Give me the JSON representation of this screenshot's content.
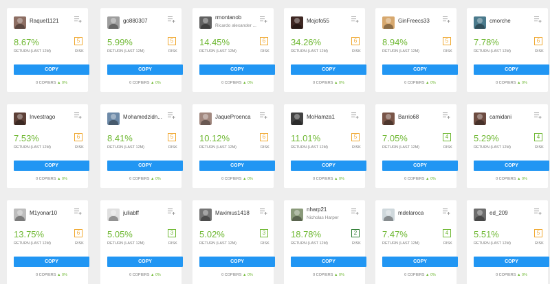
{
  "labels": {
    "return_label": "RETURN (LAST 12M)",
    "risk_label": "RISK",
    "copy_button": "COPY",
    "copiers_suffix": "COPIERS",
    "arrow": "▲"
  },
  "traders": [
    {
      "username": "Raquel1121",
      "fullname": "",
      "return": "8.67%",
      "risk": "5",
      "copiers": "0",
      "change": "0%",
      "avatar_color": "#8d6e63"
    },
    {
      "username": "go880307",
      "fullname": "",
      "return": "5.99%",
      "risk": "5",
      "copiers": "0",
      "change": "0%",
      "avatar_color": "#9e9e9e"
    },
    {
      "username": "rmontanob",
      "fullname": "Ricardo alexander ...",
      "return": "14.45%",
      "risk": "6",
      "copiers": "0",
      "change": "0%",
      "avatar_color": "#616161"
    },
    {
      "username": "Mojofo55",
      "fullname": "",
      "return": "34.26%",
      "risk": "6",
      "copiers": "0",
      "change": "0%",
      "avatar_color": "#3e2723"
    },
    {
      "username": "GinFreecs33",
      "fullname": "",
      "return": "8.94%",
      "risk": "5",
      "copiers": "0",
      "change": "0%",
      "avatar_color": "#d7a86e"
    },
    {
      "username": "cmorche",
      "fullname": "",
      "return": "7.78%",
      "risk": "6",
      "copiers": "0",
      "change": "0%",
      "avatar_color": "#4a7a8c"
    },
    {
      "username": "Investrago",
      "fullname": "",
      "return": "7.53%",
      "risk": "6",
      "copiers": "0",
      "change": "0%",
      "avatar_color": "#5d4037"
    },
    {
      "username": "Mohamedzidn...",
      "fullname": "",
      "return": "8.41%",
      "risk": "5",
      "copiers": "0",
      "change": "0%",
      "avatar_color": "#6d8aa8"
    },
    {
      "username": "JaqueProenca",
      "fullname": "",
      "return": "10.12%",
      "risk": "6",
      "copiers": "0",
      "change": "0%",
      "avatar_color": "#a1887f"
    },
    {
      "username": "MoHamza1",
      "fullname": "",
      "return": "11.01%",
      "risk": "5",
      "copiers": "0",
      "change": "0%",
      "avatar_color": "#424242"
    },
    {
      "username": "Barrio68",
      "fullname": "",
      "return": "7.05%",
      "risk": "4",
      "copiers": "0",
      "change": "0%",
      "avatar_color": "#795548"
    },
    {
      "username": "camidani",
      "fullname": "",
      "return": "5.29%",
      "risk": "4",
      "copiers": "0",
      "change": "0%",
      "avatar_color": "#6d4c41"
    },
    {
      "username": "M1yonar10",
      "fullname": "",
      "return": "13.75%",
      "risk": "6",
      "copiers": "0",
      "change": "0%",
      "avatar_color": "#bdbdbd"
    },
    {
      "username": "juliabff",
      "fullname": "",
      "return": "5.05%",
      "risk": "3",
      "copiers": "0",
      "change": "0%",
      "avatar_color": "#e0e0e0"
    },
    {
      "username": "Maximus1418",
      "fullname": "",
      "return": "5.02%",
      "risk": "3",
      "copiers": "0",
      "change": "0%",
      "avatar_color": "#757575"
    },
    {
      "username": "nharp21",
      "fullname": "Nicholas Harper",
      "return": "18.78%",
      "risk": "2",
      "copiers": "0",
      "change": "0%",
      "avatar_color": "#8a9a7a"
    },
    {
      "username": "mdelaroca",
      "fullname": "",
      "return": "7.47%",
      "risk": "4",
      "copiers": "0",
      "change": "0%",
      "avatar_color": "#cfd8dc"
    },
    {
      "username": "ed_209",
      "fullname": "",
      "return": "5.51%",
      "risk": "5",
      "copiers": "0",
      "change": "0%",
      "avatar_color": "#6d6d6d"
    }
  ],
  "colors": {
    "return_green": "#6fb833",
    "risk_orange": "#f0a830",
    "risk_green": "#6fb833",
    "risk_dark_green": "#2e7d32",
    "copy_blue": "#2196f3"
  }
}
